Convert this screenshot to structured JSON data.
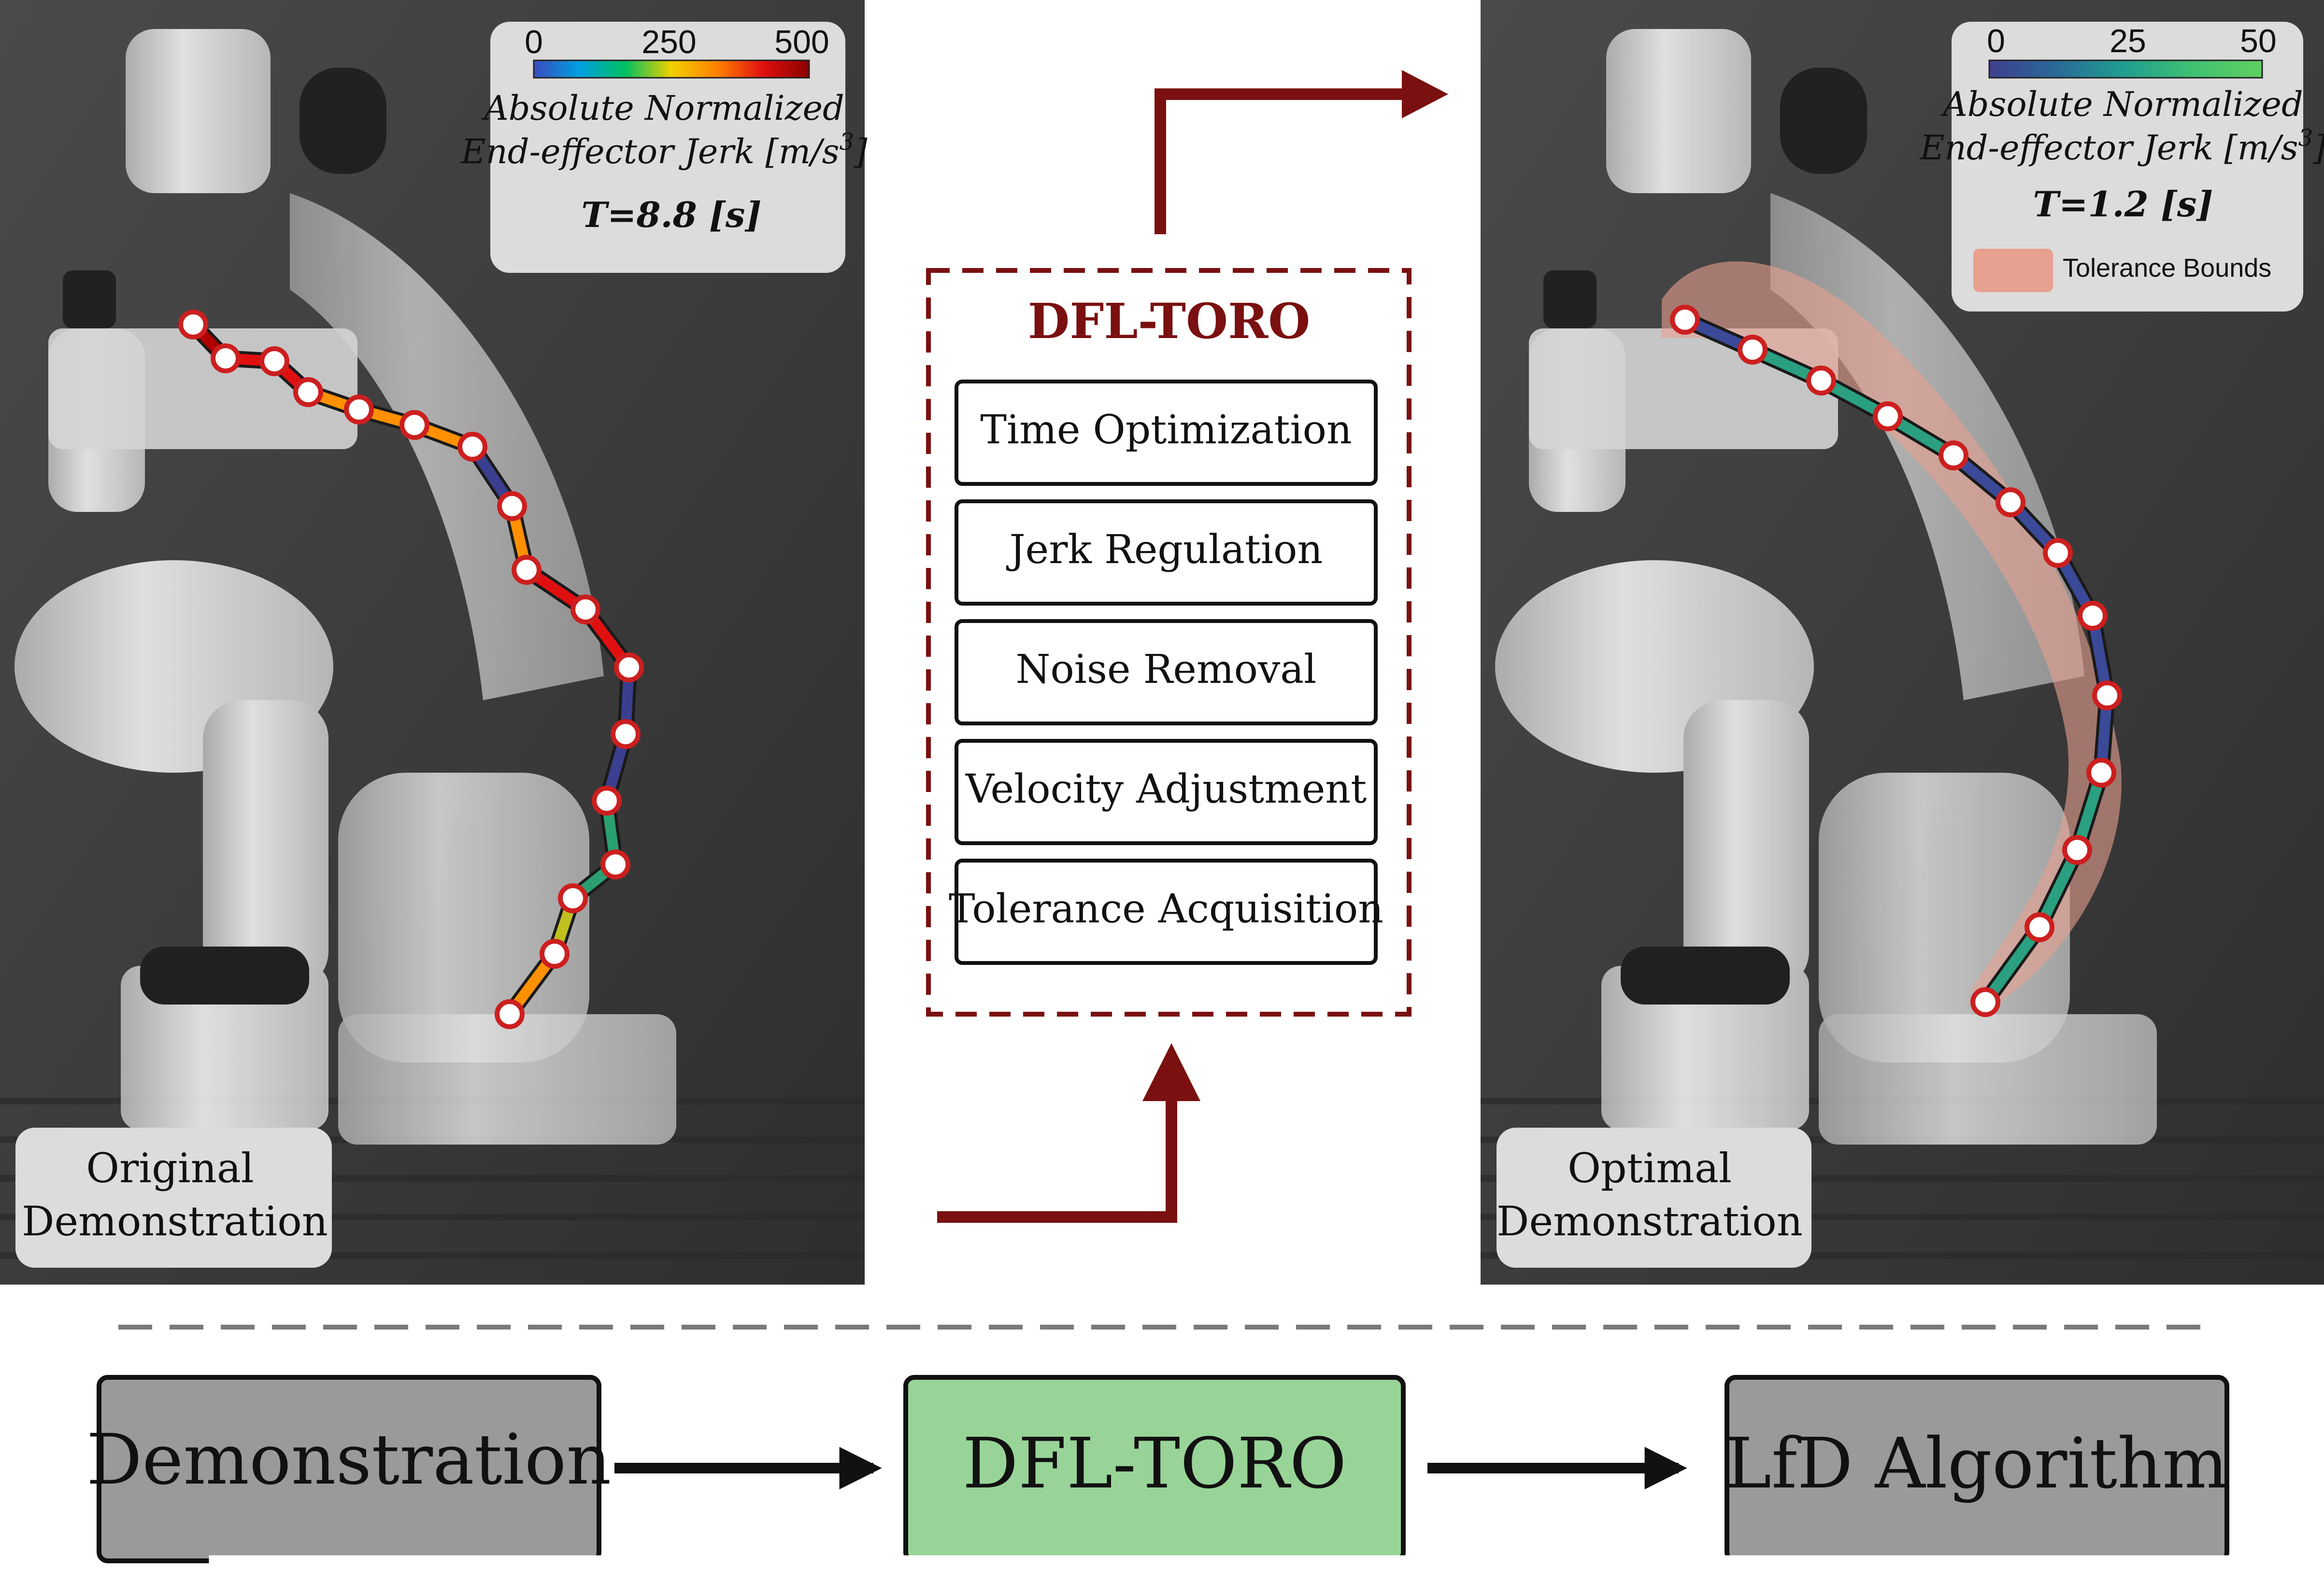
{
  "left_panel": {
    "colorbar_ticks": [
      "0",
      "250",
      "500"
    ],
    "colorbar_colors": [
      "#3b4cc0",
      "#00a0e0",
      "#00c060",
      "#f0d000",
      "#ff8000",
      "#e01010",
      "#8b0000"
    ],
    "title_line1": "Absolute Normalized",
    "title_line2": "End-effector Jerk [m/s",
    "title_exp": "3",
    "title_close": "]",
    "time": "T=8.8 [s]",
    "caption_line1": "Original",
    "caption_line2": "Demonstration",
    "segment_colors": [
      "#b00000",
      "#e01010",
      "#e01010",
      "#ff9000",
      "#ff9000",
      "#ff9000",
      "#3a3f8f",
      "#ff9000",
      "#e01010",
      "#e01010",
      "#3a3f8f",
      "#3a3f8f",
      "#2aa070",
      "#2aa070",
      "#c0c020",
      "#ff9000",
      "#ff9000",
      "#2aa070"
    ]
  },
  "right_panel": {
    "colorbar_ticks": [
      "0",
      "25",
      "50"
    ],
    "colorbar_colors": [
      "#3f3f8f",
      "#2a6a98",
      "#20a090",
      "#40c070",
      "#60d060"
    ],
    "title_line1": "Absolute Normalized",
    "title_line2": "End-effector Jerk [m/s",
    "title_exp": "3",
    "title_close": "]",
    "time": "T=1.2 [s]",
    "legend_label": "Tolerance Bounds",
    "legend_color": "#e8a090",
    "caption_line1": "Optimal",
    "caption_line2": "Demonstration",
    "segment_colors": [
      "#3a4a98",
      "#2aa080",
      "#2aa080",
      "#2aa080",
      "#3a4a98",
      "#3a4a98",
      "#3a4a98",
      "#3a4a98",
      "#3a4a98",
      "#2aa080",
      "#2aa080",
      "#2aa080",
      "#2aa080"
    ]
  },
  "center": {
    "title": "DFL-TORO",
    "steps": [
      "Time Optimization",
      "Jerk Regulation",
      "Noise Removal",
      "Velocity Adjustment",
      "Tolerance Acquisition"
    ],
    "accent_color": "#7a1010"
  },
  "pipeline": {
    "steps": [
      "Demonstration",
      "DFL-TORO",
      "LfD Algorithm"
    ],
    "box_colors": [
      "#9a9a9a",
      "#98d498",
      "#9a9a9a"
    ]
  }
}
